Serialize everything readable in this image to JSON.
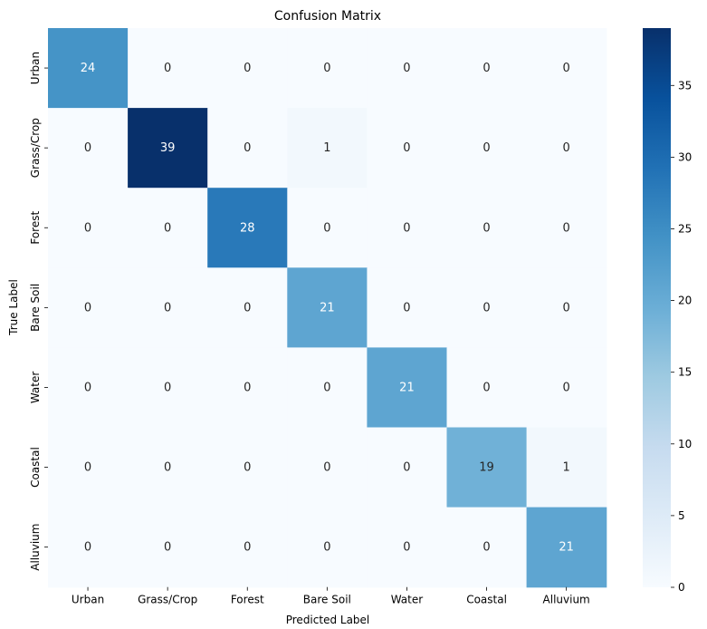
{
  "chart_data": {
    "type": "heatmap",
    "title": "Confusion Matrix",
    "xlabel": "Predicted Label",
    "ylabel": "True Label",
    "x_categories": [
      "Urban",
      "Grass/Crop",
      "Forest",
      "Bare Soil",
      "Water",
      "Coastal",
      "Alluvium"
    ],
    "y_categories": [
      "Urban",
      "Grass/Crop",
      "Forest",
      "Bare Soil",
      "Water",
      "Coastal",
      "Alluvium"
    ],
    "values": [
      [
        24,
        0,
        0,
        0,
        0,
        0,
        0
      ],
      [
        0,
        39,
        0,
        1,
        0,
        0,
        0
      ],
      [
        0,
        0,
        28,
        0,
        0,
        0,
        0
      ],
      [
        0,
        0,
        0,
        21,
        0,
        0,
        0
      ],
      [
        0,
        0,
        0,
        0,
        21,
        0,
        0
      ],
      [
        0,
        0,
        0,
        0,
        0,
        19,
        1
      ],
      [
        0,
        0,
        0,
        0,
        0,
        0,
        21
      ]
    ],
    "colormap": "Blues",
    "vmin": 0,
    "vmax": 39,
    "colorbar_ticks": [
      0,
      5,
      10,
      15,
      20,
      25,
      30,
      35
    ],
    "annotate": true
  }
}
